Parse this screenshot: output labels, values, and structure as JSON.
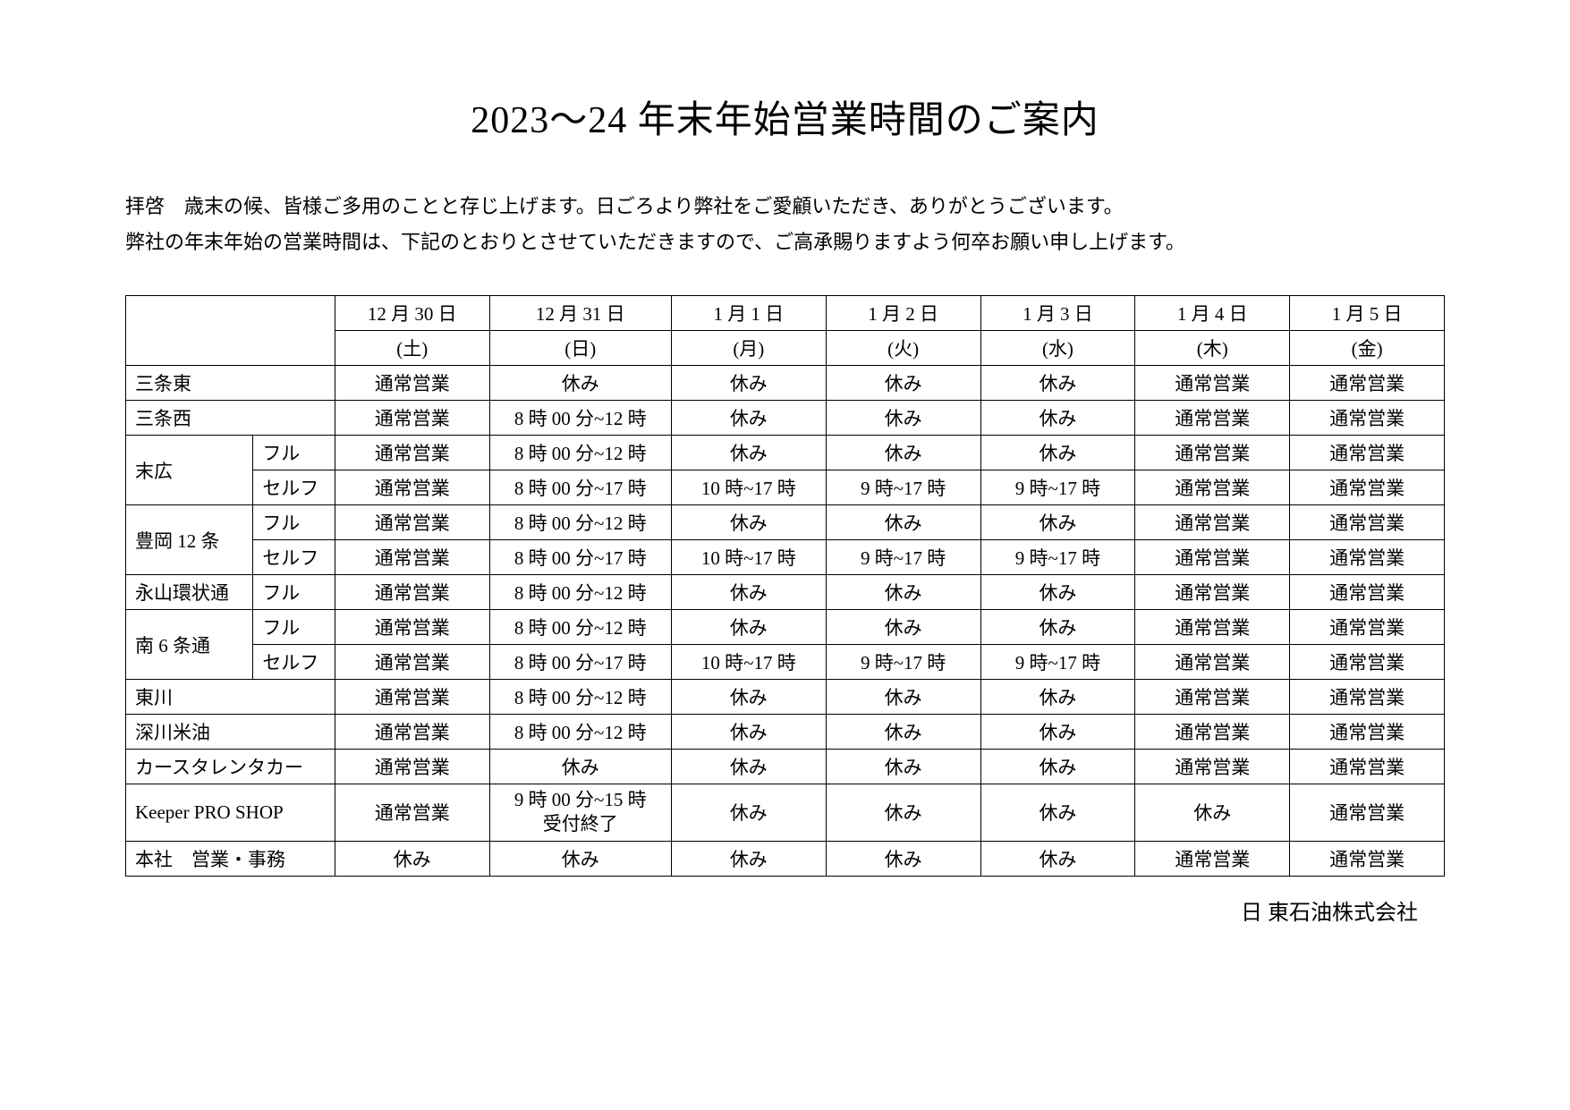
{
  "title": "2023～24 年末年始営業時間のご案内",
  "intro": {
    "line1": "拝啓　歳末の候、皆様ご多用のことと存じ上げます。日ごろより弊社をご愛顧いただき、ありがとうございます。",
    "line2": "弊社の年末年始の営業時間は、下記のとおりとさせていただきますので、ご高承賜りますよう何卒お願い申し上げます。"
  },
  "columns": [
    {
      "date": "12 月 30 日",
      "dow": "(土)"
    },
    {
      "date": "12 月 31 日",
      "dow": "(日)"
    },
    {
      "date": "1 月 1 日",
      "dow": "(月)"
    },
    {
      "date": "1 月 2 日",
      "dow": "(火)"
    },
    {
      "date": "1 月 3 日",
      "dow": "(水)"
    },
    {
      "date": "1 月 4 日",
      "dow": "(木)"
    },
    {
      "date": "1 月 5 日",
      "dow": "(金)"
    }
  ],
  "labels": {
    "normal": "通常営業",
    "closed": "休み",
    "full": "フル",
    "self": "セルフ",
    "h8_12": "8 時 00 分~12 時",
    "h8_17": "8 時 00 分~17 時",
    "h10_17": "10 時~17 時",
    "h9_17": "9 時~17 時",
    "h9_15_end": "9 時 00 分~15 時\n受付終了"
  },
  "rows": {
    "sanjo_higashi": {
      "name": "三条東"
    },
    "sanjo_nishi": {
      "name": "三条西"
    },
    "suehiro": {
      "name": "末広"
    },
    "toyooka12": {
      "name": "豊岡 12 条"
    },
    "nagayama": {
      "name": "永山環状通"
    },
    "minami6": {
      "name": "南 6 条通"
    },
    "higashikawa": {
      "name": "東川"
    },
    "fukagawa": {
      "name": "深川米油"
    },
    "rental": {
      "name": "カースタレンタカー"
    },
    "keeper": {
      "name": "Keeper PRO SHOP"
    },
    "honsha": {
      "name": "本社　営業・事務"
    }
  },
  "footer": "日 東石油株式会社",
  "table_style": {
    "border_color": "#000000",
    "background_color": "#ffffff",
    "font_size_title": 42,
    "font_size_intro": 22,
    "font_size_table": 21,
    "font_size_footer": 24
  }
}
